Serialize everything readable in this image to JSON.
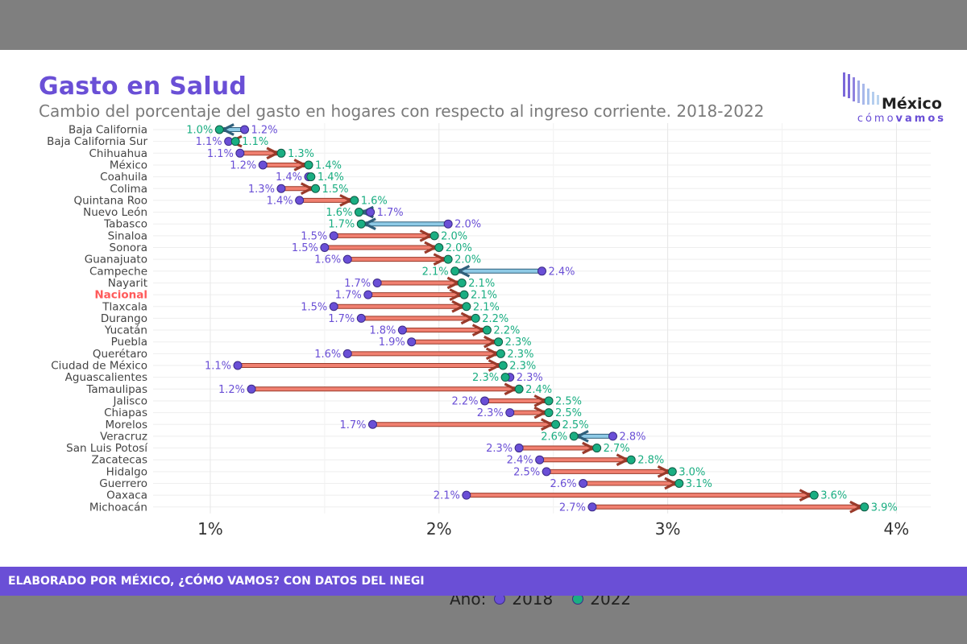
{
  "header": {
    "title": "Gasto en Salud",
    "subtitle": "Cambio del porcentaje del gasto en hogares con respecto al ingreso corriente. 2018-2022"
  },
  "logo": {
    "name": "México",
    "sub_light": "cómo",
    "sub_bold": "vamos"
  },
  "footer": {
    "text": "ELABORADO POR MÉXICO, ¿CÓMO VAMOS? CON DATOS DEL INEGI"
  },
  "legend": {
    "title": "Año:",
    "items": [
      "2018",
      "2022"
    ]
  },
  "colors": {
    "y2018": "#6a4fd6",
    "y2022": "#1aae82",
    "increase_arrow": "#f08070",
    "decrease_arrow": "#8ecae6",
    "highlight": "#ff5a5a",
    "brand": "#6a4fd6"
  },
  "chart_data": {
    "type": "dumbbell",
    "xlim": [
      0.75,
      4.15
    ],
    "xticks": [
      1,
      2,
      3,
      4
    ],
    "xtick_labels": [
      "1%",
      "2%",
      "3%",
      "4%"
    ],
    "highlight_category": "Nacional",
    "series": [
      {
        "name": "2018"
      },
      {
        "name": "2022"
      }
    ],
    "rows": [
      {
        "state": "Baja California",
        "v2018": 1.15,
        "v2022": 1.04,
        "l2018": "1.2%",
        "l2022": "1.0%"
      },
      {
        "state": "Baja California Sur",
        "v2018": 1.08,
        "v2022": 1.11,
        "l2018": "1.1%",
        "l2022": "1.1%"
      },
      {
        "state": "Chihuahua",
        "v2018": 1.13,
        "v2022": 1.31,
        "l2018": "1.1%",
        "l2022": "1.3%"
      },
      {
        "state": "México",
        "v2018": 1.23,
        "v2022": 1.43,
        "l2018": "1.2%",
        "l2022": "1.4%"
      },
      {
        "state": "Coahuila",
        "v2018": 1.43,
        "v2022": 1.44,
        "l2018": "1.4%",
        "l2022": "1.4%"
      },
      {
        "state": "Colima",
        "v2018": 1.31,
        "v2022": 1.46,
        "l2018": "1.3%",
        "l2022": "1.5%"
      },
      {
        "state": "Quintana Roo",
        "v2018": 1.39,
        "v2022": 1.63,
        "l2018": "1.4%",
        "l2022": "1.6%"
      },
      {
        "state": "Nuevo León",
        "v2018": 1.7,
        "v2022": 1.65,
        "l2018": "1.7%",
        "l2022": "1.6%"
      },
      {
        "state": "Tabasco",
        "v2018": 2.04,
        "v2022": 1.66,
        "l2018": "2.0%",
        "l2022": "1.7%"
      },
      {
        "state": "Sinaloa",
        "v2018": 1.54,
        "v2022": 1.98,
        "l2018": "1.5%",
        "l2022": "2.0%"
      },
      {
        "state": "Sonora",
        "v2018": 1.5,
        "v2022": 2.0,
        "l2018": "1.5%",
        "l2022": "2.0%"
      },
      {
        "state": "Guanajuato",
        "v2018": 1.6,
        "v2022": 2.04,
        "l2018": "1.6%",
        "l2022": "2.0%"
      },
      {
        "state": "Campeche",
        "v2018": 2.45,
        "v2022": 2.07,
        "l2018": "2.4%",
        "l2022": "2.1%"
      },
      {
        "state": "Nayarit",
        "v2018": 1.73,
        "v2022": 2.1,
        "l2018": "1.7%",
        "l2022": "2.1%"
      },
      {
        "state": "Nacional",
        "v2018": 1.69,
        "v2022": 2.11,
        "l2018": "1.7%",
        "l2022": "2.1%"
      },
      {
        "state": "Tlaxcala",
        "v2018": 1.54,
        "v2022": 2.12,
        "l2018": "1.5%",
        "l2022": "2.1%"
      },
      {
        "state": "Durango",
        "v2018": 1.66,
        "v2022": 2.16,
        "l2018": "1.7%",
        "l2022": "2.2%"
      },
      {
        "state": "Yucatán",
        "v2018": 1.84,
        "v2022": 2.21,
        "l2018": "1.8%",
        "l2022": "2.2%"
      },
      {
        "state": "Puebla",
        "v2018": 1.88,
        "v2022": 2.26,
        "l2018": "1.9%",
        "l2022": "2.3%"
      },
      {
        "state": "Querétaro",
        "v2018": 1.6,
        "v2022": 2.27,
        "l2018": "1.6%",
        "l2022": "2.3%"
      },
      {
        "state": "Ciudad de México",
        "v2018": 1.12,
        "v2022": 2.28,
        "l2018": "1.1%",
        "l2022": "2.3%"
      },
      {
        "state": "Aguascalientes",
        "v2018": 2.31,
        "v2022": 2.29,
        "l2018": "2.3%",
        "l2022": "2.3%"
      },
      {
        "state": "Tamaulipas",
        "v2018": 1.18,
        "v2022": 2.35,
        "l2018": "1.2%",
        "l2022": "2.4%"
      },
      {
        "state": "Jalisco",
        "v2018": 2.2,
        "v2022": 2.48,
        "l2018": "2.2%",
        "l2022": "2.5%"
      },
      {
        "state": "Chiapas",
        "v2018": 2.31,
        "v2022": 2.48,
        "l2018": "2.3%",
        "l2022": "2.5%"
      },
      {
        "state": "Morelos",
        "v2018": 1.71,
        "v2022": 2.51,
        "l2018": "1.7%",
        "l2022": "2.5%"
      },
      {
        "state": "Veracruz",
        "v2018": 2.76,
        "v2022": 2.59,
        "l2018": "2.8%",
        "l2022": "2.6%"
      },
      {
        "state": "San Luis Potosí",
        "v2018": 2.35,
        "v2022": 2.69,
        "l2018": "2.3%",
        "l2022": "2.7%"
      },
      {
        "state": "Zacatecas",
        "v2018": 2.44,
        "v2022": 2.84,
        "l2018": "2.4%",
        "l2022": "2.8%"
      },
      {
        "state": "Hidalgo",
        "v2018": 2.47,
        "v2022": 3.02,
        "l2018": "2.5%",
        "l2022": "3.0%"
      },
      {
        "state": "Guerrero",
        "v2018": 2.63,
        "v2022": 3.05,
        "l2018": "2.6%",
        "l2022": "3.1%"
      },
      {
        "state": "Oaxaca",
        "v2018": 2.12,
        "v2022": 3.64,
        "l2018": "2.1%",
        "l2022": "3.6%"
      },
      {
        "state": "Michoacán",
        "v2018": 2.67,
        "v2022": 3.86,
        "l2018": "2.7%",
        "l2022": "3.9%"
      }
    ]
  }
}
